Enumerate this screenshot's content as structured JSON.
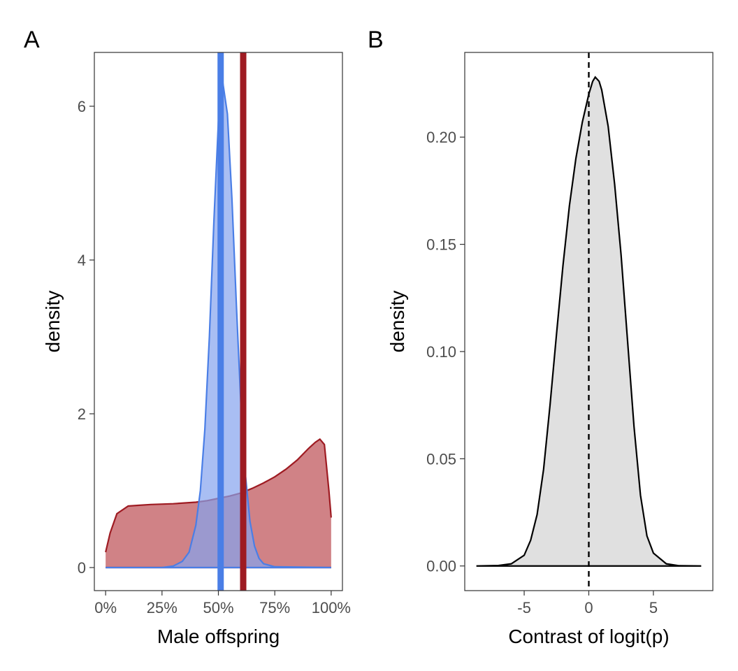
{
  "chart_data": [
    {
      "panel": "A",
      "type": "area",
      "xlabel": "Male offspring",
      "ylabel": "density",
      "xlim": [
        -0.05,
        1.05
      ],
      "ylim": [
        -0.3,
        6.7
      ],
      "x_ticks": [
        0,
        0.25,
        0.5,
        0.75,
        1.0
      ],
      "x_tick_labels": [
        "0%",
        "25%",
        "50%",
        "75%",
        "100%"
      ],
      "y_ticks": [
        0,
        2,
        4,
        6
      ],
      "y_tick_labels": [
        "0",
        "2",
        "4",
        "6"
      ],
      "grid": false,
      "series": [
        {
          "fill": "#c0585e",
          "stroke": "#9e1b22",
          "opacity": 0.75,
          "x": [
            0,
            0.02,
            0.05,
            0.1,
            0.15,
            0.2,
            0.3,
            0.4,
            0.45,
            0.5,
            0.55,
            0.6,
            0.65,
            0.7,
            0.75,
            0.8,
            0.85,
            0.9,
            0.93,
            0.95,
            0.97,
            0.99,
            1.0
          ],
          "values": [
            0.2,
            0.45,
            0.7,
            0.8,
            0.81,
            0.82,
            0.83,
            0.85,
            0.87,
            0.9,
            0.93,
            0.97,
            1.03,
            1.1,
            1.18,
            1.28,
            1.4,
            1.55,
            1.63,
            1.67,
            1.6,
            1.0,
            0.65
          ]
        },
        {
          "fill": "#84a3ee",
          "stroke": "#4a7ee6",
          "opacity": 0.7,
          "x": [
            0,
            0.25,
            0.3,
            0.34,
            0.37,
            0.4,
            0.42,
            0.44,
            0.46,
            0.48,
            0.5,
            0.51,
            0.52,
            0.54,
            0.56,
            0.58,
            0.6,
            0.62,
            0.64,
            0.66,
            0.68,
            0.7,
            0.75,
            1.0
          ],
          "values": [
            0,
            0,
            0.02,
            0.08,
            0.2,
            0.55,
            1.0,
            1.8,
            3.0,
            4.5,
            5.8,
            6.25,
            6.3,
            5.9,
            4.8,
            3.4,
            2.1,
            1.2,
            0.6,
            0.28,
            0.12,
            0.05,
            0.01,
            0
          ]
        }
      ],
      "vlines": [
        {
          "x": 0.51,
          "color": "#4a7ee6"
        },
        {
          "x": 0.61,
          "color": "#9e1b22"
        }
      ]
    },
    {
      "panel": "B",
      "type": "area",
      "xlabel": "Contrast of logit(p)",
      "ylabel": "density",
      "xlim": [
        -9.6,
        9.6
      ],
      "ylim": [
        -0.0115,
        0.2395
      ],
      "x_ticks": [
        -5,
        0,
        5
      ],
      "x_tick_labels": [
        "-5",
        "0",
        "5"
      ],
      "y_ticks": [
        0,
        0.05,
        0.1,
        0.15,
        0.2
      ],
      "y_tick_labels": [
        "0.00",
        "0.05",
        "0.10",
        "0.15",
        "0.20"
      ],
      "grid": false,
      "series": [
        {
          "fill": "#e0e0e0",
          "stroke": "#000000",
          "opacity": 1,
          "x": [
            -8.7,
            -7,
            -6,
            -5,
            -4.5,
            -4,
            -3.5,
            -3,
            -2.5,
            -2,
            -1.5,
            -1,
            -0.5,
            0,
            0.3,
            0.5,
            0.8,
            1,
            1.5,
            2,
            2.5,
            3,
            3.5,
            4,
            4.5,
            5,
            6,
            7,
            8.7
          ],
          "values": [
            0,
            0.0002,
            0.001,
            0.005,
            0.012,
            0.024,
            0.045,
            0.075,
            0.108,
            0.14,
            0.168,
            0.19,
            0.207,
            0.22,
            0.226,
            0.228,
            0.226,
            0.222,
            0.205,
            0.178,
            0.145,
            0.105,
            0.065,
            0.033,
            0.014,
            0.006,
            0.001,
            0.0001,
            0
          ]
        }
      ],
      "vlines": [
        {
          "x": 0,
          "color": "#000000",
          "dashed": true
        }
      ]
    }
  ],
  "panel_labels": {
    "a": "A",
    "b": "B"
  }
}
